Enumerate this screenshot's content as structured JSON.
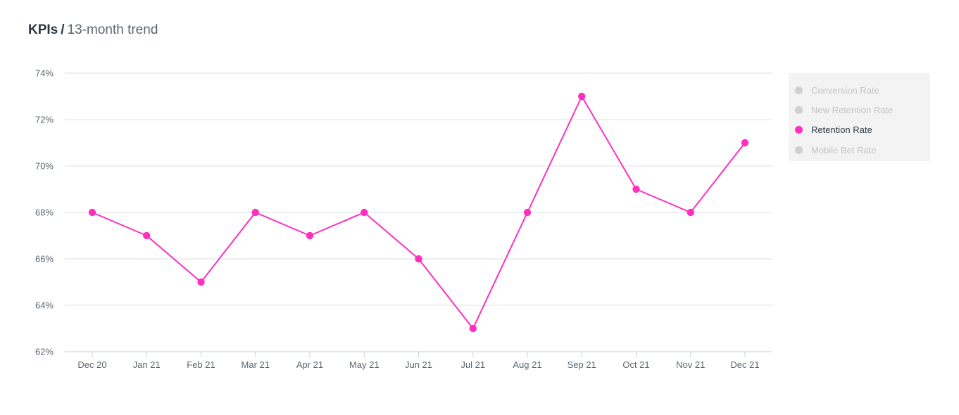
{
  "header": {
    "title_strong": "KPIs",
    "separator": "/",
    "subtitle": "13-month trend"
  },
  "legend": {
    "items": [
      {
        "label": "Conversion Rate",
        "active": false,
        "color": "#cfcfcf"
      },
      {
        "label": "New Retention Rate",
        "active": false,
        "color": "#cfcfcf"
      },
      {
        "label": "Retention Rate",
        "active": true,
        "color": "#ff2fc0"
      },
      {
        "label": "Mobile Bet Rate",
        "active": false,
        "color": "#cfcfcf"
      }
    ]
  },
  "chart_data": {
    "type": "line",
    "title": "",
    "xlabel": "",
    "ylabel": "",
    "categories": [
      "Dec 20",
      "Jan 21",
      "Feb 21",
      "Mar 21",
      "Apr 21",
      "May 21",
      "Jun 21",
      "Jul 21",
      "Aug 21",
      "Sep 21",
      "Oct 21",
      "Nov 21",
      "Dec 21"
    ],
    "ylim": [
      62,
      74
    ],
    "yticks": [
      62,
      64,
      66,
      68,
      70,
      72,
      74
    ],
    "ytick_labels": [
      "62%",
      "64%",
      "66%",
      "68%",
      "70%",
      "72%",
      "74%"
    ],
    "grid": true,
    "legend_position": "right",
    "series": [
      {
        "name": "Retention Rate",
        "color": "#ff2fc0",
        "values": [
          68,
          67,
          65,
          68,
          67,
          68,
          66,
          63,
          68,
          73,
          69,
          68,
          71
        ]
      }
    ]
  }
}
